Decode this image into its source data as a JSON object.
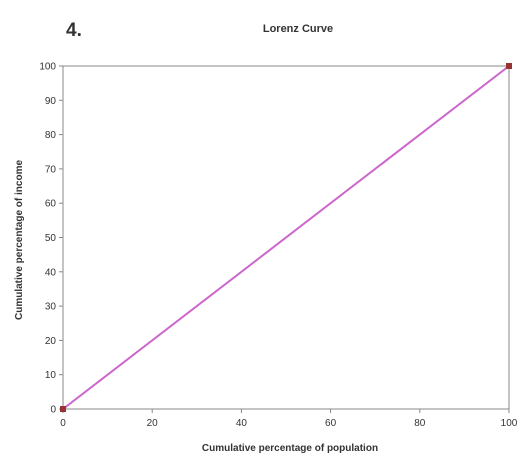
{
  "question_number": "4.",
  "chart_data": {
    "type": "line",
    "title": "Lorenz Curve",
    "xlabel": "Cumulative percentage of population",
    "ylabel": "Cumulative percentage of income",
    "xlim": [
      0,
      100
    ],
    "ylim": [
      0,
      100
    ],
    "x_ticks": [
      0,
      20,
      40,
      60,
      80,
      100
    ],
    "y_ticks": [
      0,
      10,
      20,
      30,
      40,
      50,
      60,
      70,
      80,
      90,
      100
    ],
    "grid": false,
    "legend": "none",
    "series": [
      {
        "x": [
          0,
          100
        ],
        "y": [
          0,
          100
        ],
        "line_color": "#cc66cc",
        "marker_color": "#993333"
      }
    ]
  }
}
